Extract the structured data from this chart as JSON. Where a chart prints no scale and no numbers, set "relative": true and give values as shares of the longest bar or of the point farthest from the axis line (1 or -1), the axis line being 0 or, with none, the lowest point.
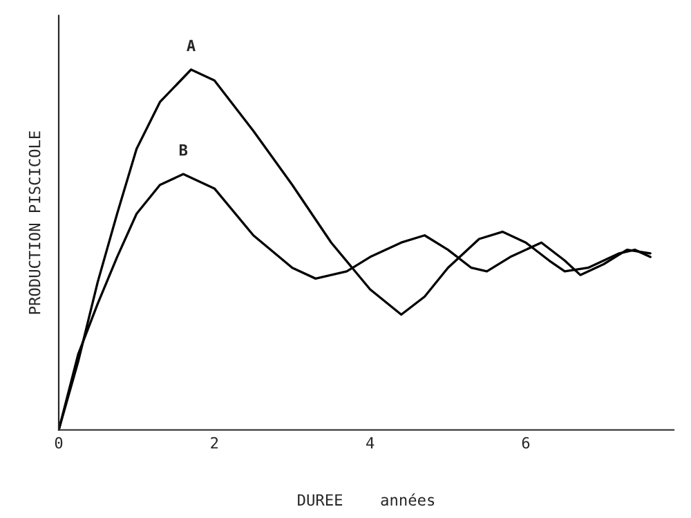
{
  "chart_data": {
    "type": "line",
    "relative": true,
    "xlabel": "DUREE    années",
    "ylabel": "PRODUCTION PISCICOLE",
    "xlim": [
      0,
      7.9
    ],
    "xticks": [
      0,
      2,
      4,
      6
    ],
    "grid": false,
    "legend": false,
    "marker": "none",
    "line_style": "solid",
    "series": [
      {
        "name": "A",
        "color": "#000000",
        "x": [
          0,
          0.25,
          0.5,
          0.75,
          1.0,
          1.3,
          1.7,
          2.0,
          2.5,
          3.0,
          3.5,
          4.0,
          4.4,
          4.7,
          5.0,
          5.4,
          5.7,
          6.0,
          6.3,
          6.5,
          6.8,
          7.2,
          7.4,
          7.6
        ],
        "values": [
          0,
          0.19,
          0.41,
          0.6,
          0.78,
          0.91,
          1.0,
          0.97,
          0.83,
          0.68,
          0.52,
          0.39,
          0.32,
          0.37,
          0.45,
          0.53,
          0.55,
          0.52,
          0.47,
          0.44,
          0.45,
          0.49,
          0.5,
          0.48
        ]
      },
      {
        "name": "B",
        "color": "#000000",
        "x": [
          0,
          0.25,
          0.5,
          0.75,
          1.0,
          1.3,
          1.6,
          2.0,
          2.5,
          3.0,
          3.3,
          3.7,
          4.0,
          4.4,
          4.7,
          5.0,
          5.3,
          5.5,
          5.8,
          6.2,
          6.5,
          6.7,
          7.0,
          7.3,
          7.6
        ],
        "values": [
          0,
          0.21,
          0.35,
          0.48,
          0.6,
          0.68,
          0.71,
          0.67,
          0.54,
          0.45,
          0.42,
          0.44,
          0.48,
          0.52,
          0.54,
          0.5,
          0.45,
          0.44,
          0.48,
          0.52,
          0.47,
          0.43,
          0.46,
          0.5,
          0.49
        ]
      }
    ]
  }
}
